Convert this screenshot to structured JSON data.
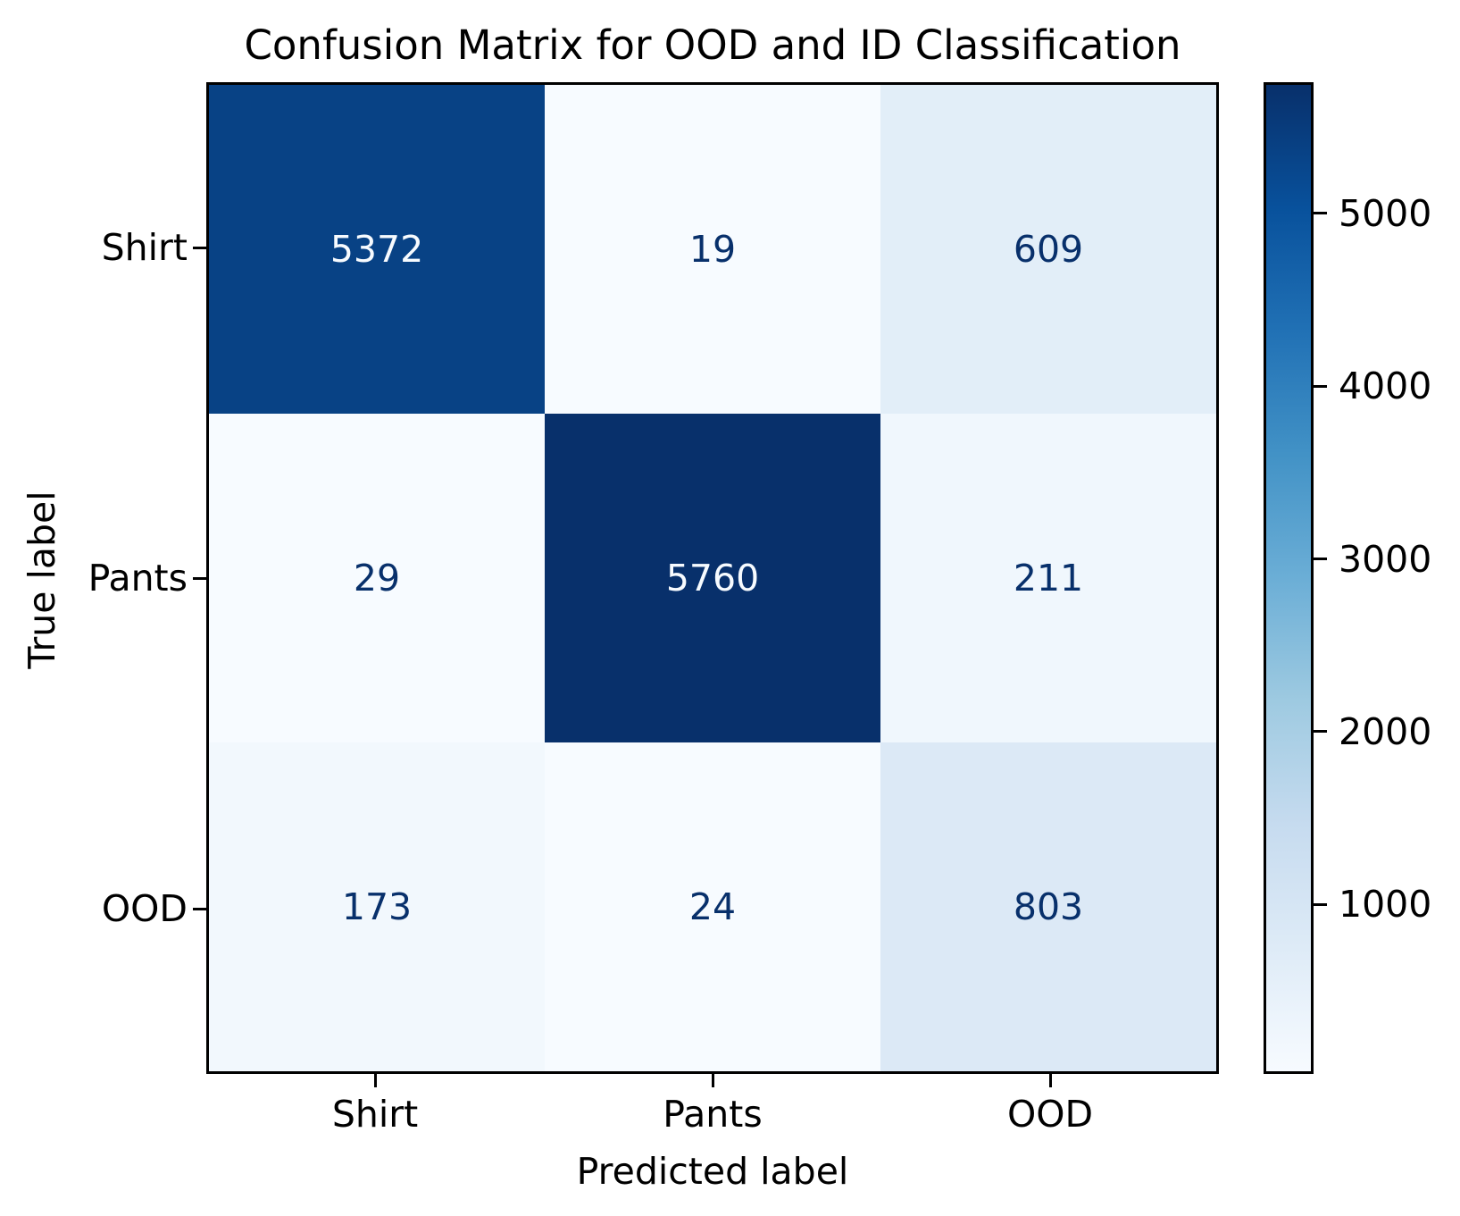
{
  "chart_data": {
    "type": "heatmap",
    "title": "Confusion Matrix for OOD and ID Classification",
    "xlabel": "Predicted label",
    "ylabel": "True label",
    "x_categories": [
      "Shirt",
      "Pants",
      "OOD"
    ],
    "y_categories": [
      "Shirt",
      "Pants",
      "OOD"
    ],
    "matrix": [
      [
        5372,
        19,
        609
      ],
      [
        29,
        5760,
        211
      ],
      [
        173,
        24,
        803
      ]
    ],
    "vmin": 19,
    "vmax": 5760,
    "colormap": "Blues",
    "colormap_stops": [
      "#f7fbff",
      "#deebf7",
      "#c6dbef",
      "#9ecae1",
      "#6baed6",
      "#4292c6",
      "#2171b5",
      "#08519c",
      "#08306b"
    ],
    "cell_colors": [
      [
        "#084285",
        "#f7fbff",
        "#e2eef8"
      ],
      [
        "#f7fbff",
        "#08306b",
        "#f0f7fd"
      ],
      [
        "#f2f8fd",
        "#f7fbff",
        "#dce9f6"
      ]
    ],
    "cell_text_color_dark_cells": "#f7fbff",
    "cell_text_color_light_cells": "#08306b",
    "colorbar": {
      "ticks": [
        1000,
        2000,
        3000,
        4000,
        5000
      ]
    },
    "layout": {
      "grid": false,
      "colorbar_position": "right",
      "axis_color": "#000000",
      "background": "#ffffff"
    }
  }
}
